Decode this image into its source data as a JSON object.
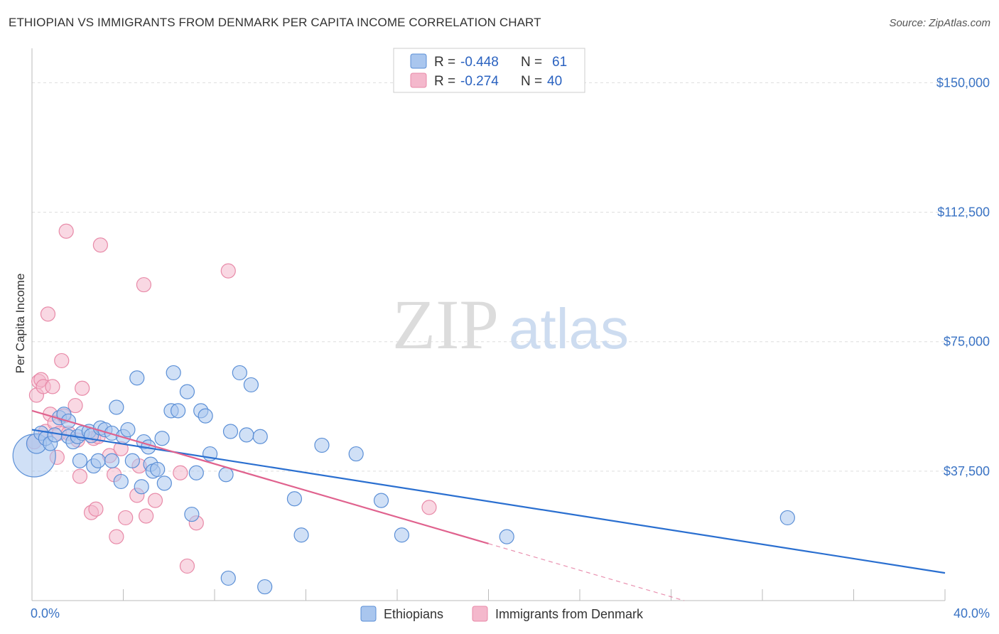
{
  "header": {
    "title": "ETHIOPIAN VS IMMIGRANTS FROM DENMARK PER CAPITA INCOME CORRELATION CHART",
    "source": "Source: ZipAtlas.com"
  },
  "watermark": {
    "zip": "ZIP",
    "atlas": "atlas"
  },
  "colors": {
    "blue_fill": "#a9c6ee",
    "blue_stroke": "#5b8fd6",
    "blue_line": "#2a6fd0",
    "pink_fill": "#f4b8cc",
    "pink_stroke": "#e88aa8",
    "pink_line": "#e0628e",
    "grid": "#dddddd",
    "tick_label": "#3a73c4"
  },
  "legend": {
    "rows": [
      {
        "r_label": "R = ",
        "r_value": "-0.448",
        "n_label": "N = ",
        "n_value": "61"
      },
      {
        "r_label": "R = ",
        "r_value": "-0.274",
        "n_label": "N = ",
        "n_value": "40"
      }
    ]
  },
  "bottom_legend": [
    "Ethiopians",
    "Immigrants from Denmark"
  ],
  "chart_data": {
    "type": "scatter",
    "title": "ETHIOPIAN VS IMMIGRANTS FROM DENMARK PER CAPITA INCOME CORRELATION CHART",
    "xlabel": "",
    "ylabel": "Per Capita Income",
    "xlim": [
      0,
      40
    ],
    "ylim": [
      0,
      157500
    ],
    "x_tick_labels": [
      "0.0%",
      "40.0%"
    ],
    "y_ticks": [
      37500,
      75000,
      112500,
      150000
    ],
    "y_tick_labels": [
      "$37,500",
      "$75,000",
      "$112,500",
      "$150,000"
    ],
    "grid": true,
    "legend_position": "top-center",
    "series": [
      {
        "name": "Ethiopians",
        "r": -0.448,
        "n": 61,
        "trend": {
          "x": [
            0,
            40
          ],
          "y": [
            49500,
            8000
          ]
        },
        "points": [
          [
            0.1,
            42000,
            3.0
          ],
          [
            0.2,
            45500,
            1.4
          ],
          [
            0.4,
            48500,
            1
          ],
          [
            0.6,
            47000,
            1
          ],
          [
            0.8,
            45500,
            1
          ],
          [
            1.0,
            48000,
            1
          ],
          [
            1.2,
            53000,
            1
          ],
          [
            1.4,
            54000,
            1
          ],
          [
            1.6,
            52000,
            1
          ],
          [
            1.6,
            47500,
            1
          ],
          [
            1.8,
            46000,
            1
          ],
          [
            2.0,
            47500,
            1
          ],
          [
            2.2,
            48500,
            1
          ],
          [
            2.1,
            40500,
            1
          ],
          [
            2.5,
            49000,
            1
          ],
          [
            2.6,
            47800,
            1
          ],
          [
            2.7,
            39000,
            1
          ],
          [
            2.9,
            40500,
            1
          ],
          [
            3.0,
            50000,
            1
          ],
          [
            3.2,
            49500,
            1
          ],
          [
            3.5,
            40500,
            1
          ],
          [
            3.5,
            48500,
            1
          ],
          [
            3.7,
            56000,
            1
          ],
          [
            3.9,
            34500,
            1
          ],
          [
            4.0,
            47500,
            1
          ],
          [
            4.2,
            49500,
            1
          ],
          [
            4.4,
            40500,
            1
          ],
          [
            4.6,
            64500,
            1
          ],
          [
            4.8,
            33000,
            1
          ],
          [
            4.9,
            46000,
            1
          ],
          [
            5.1,
            44500,
            1
          ],
          [
            5.2,
            39500,
            1
          ],
          [
            5.3,
            37500,
            1
          ],
          [
            5.5,
            38000,
            1
          ],
          [
            5.7,
            47000,
            1
          ],
          [
            5.8,
            34000,
            1
          ],
          [
            6.1,
            55000,
            1
          ],
          [
            6.2,
            66000,
            1
          ],
          [
            6.4,
            55000,
            1
          ],
          [
            6.8,
            60500,
            1
          ],
          [
            7.0,
            25000,
            1
          ],
          [
            7.2,
            37000,
            1
          ],
          [
            7.4,
            55000,
            1
          ],
          [
            7.6,
            53500,
            1
          ],
          [
            7.8,
            42500,
            1
          ],
          [
            8.5,
            36500,
            1
          ],
          [
            8.6,
            6500,
            1
          ],
          [
            8.7,
            49000,
            1
          ],
          [
            9.1,
            66000,
            1
          ],
          [
            9.4,
            48000,
            1
          ],
          [
            9.6,
            62500,
            1
          ],
          [
            10.0,
            47500,
            1
          ],
          [
            10.2,
            4000,
            1
          ],
          [
            11.5,
            29500,
            1
          ],
          [
            11.8,
            19000,
            1
          ],
          [
            12.7,
            45000,
            1
          ],
          [
            14.2,
            42500,
            1
          ],
          [
            15.3,
            29000,
            1
          ],
          [
            16.2,
            19000,
            1
          ],
          [
            20.8,
            18500,
            1
          ],
          [
            33.1,
            24000,
            1
          ]
        ]
      },
      {
        "name": "Immigrants from Denmark",
        "r": -0.274,
        "n": 40,
        "trend": {
          "x": [
            0,
            20
          ],
          "y": [
            55000,
            16500
          ],
          "dashed_to": {
            "x": [
              20,
              40
            ],
            "y": [
              16500,
              -22000
            ]
          }
        },
        "points": [
          [
            0.1,
            46000,
            1
          ],
          [
            0.2,
            59500,
            1
          ],
          [
            0.3,
            63500,
            1
          ],
          [
            0.4,
            64000,
            1
          ],
          [
            0.5,
            62000,
            1
          ],
          [
            0.6,
            49000,
            1
          ],
          [
            0.7,
            83000,
            1
          ],
          [
            0.8,
            54000,
            1
          ],
          [
            0.9,
            62000,
            1
          ],
          [
            1.0,
            51500,
            1
          ],
          [
            1.1,
            41500,
            1
          ],
          [
            1.2,
            48500,
            1
          ],
          [
            1.3,
            69500,
            1
          ],
          [
            1.4,
            53500,
            1
          ],
          [
            1.6,
            48500,
            1
          ],
          [
            1.9,
            56500,
            1
          ],
          [
            2.0,
            46500,
            1
          ],
          [
            2.1,
            36000,
            1
          ],
          [
            2.2,
            61500,
            1
          ],
          [
            2.6,
            25500,
            1
          ],
          [
            2.7,
            47000,
            1
          ],
          [
            2.8,
            26500,
            1
          ],
          [
            2.9,
            47500,
            1
          ],
          [
            3.0,
            103000,
            1
          ],
          [
            3.4,
            42000,
            1
          ],
          [
            3.6,
            36500,
            1
          ],
          [
            3.7,
            18500,
            1
          ],
          [
            3.9,
            44000,
            1
          ],
          [
            4.1,
            24000,
            1
          ],
          [
            4.6,
            30500,
            1
          ],
          [
            4.7,
            39000,
            1
          ],
          [
            4.9,
            91500,
            1
          ],
          [
            5.0,
            24500,
            1
          ],
          [
            5.4,
            29000,
            1
          ],
          [
            6.5,
            37000,
            1
          ],
          [
            6.8,
            10000,
            1
          ],
          [
            7.2,
            22500,
            1
          ],
          [
            8.6,
            95500,
            1
          ],
          [
            1.5,
            107000,
            1
          ],
          [
            17.4,
            27000,
            1
          ]
        ]
      }
    ]
  }
}
